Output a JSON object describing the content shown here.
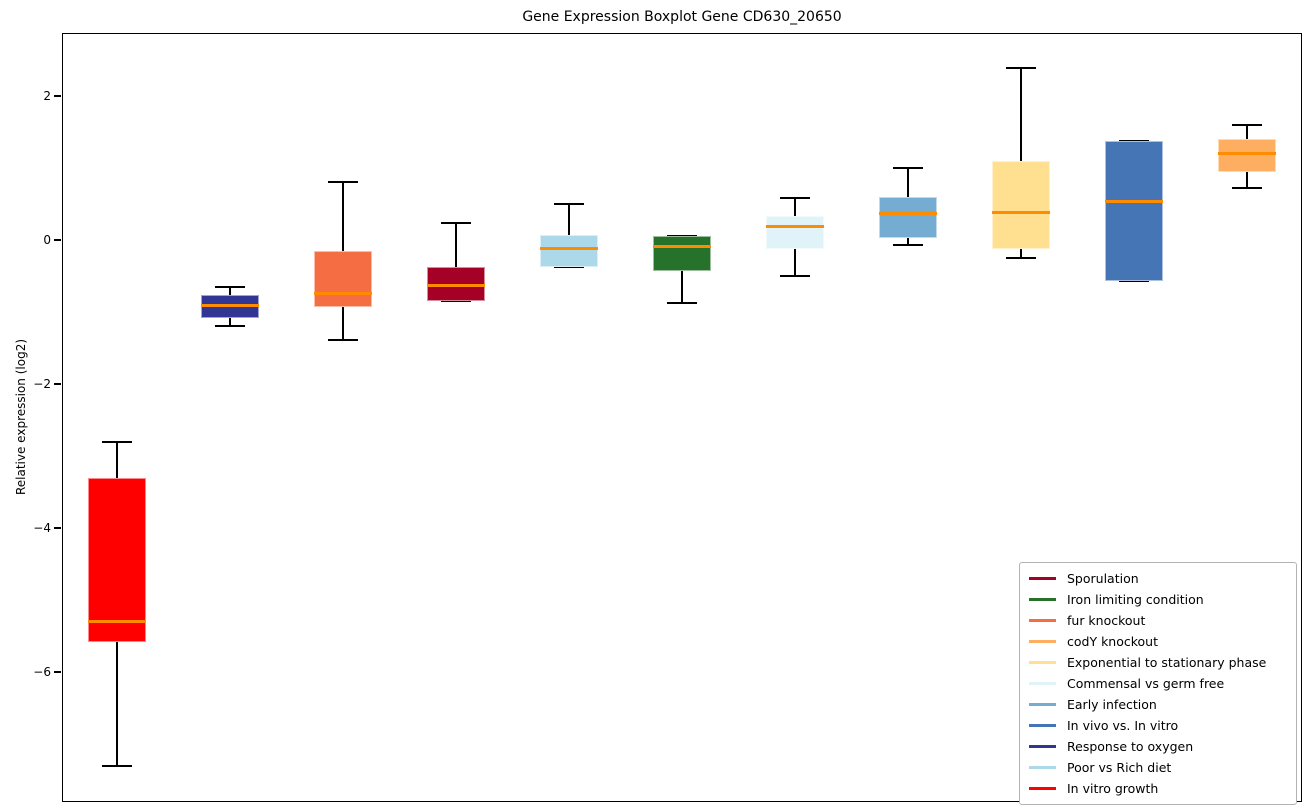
{
  "chart_data": {
    "type": "boxplot",
    "title": "Gene Expression Boxplot Gene CD630_20650",
    "ylabel": "Relative expression (log2)",
    "xlabel": "",
    "ylim": [
      -7.82,
      2.86
    ],
    "yticks": [
      2,
      0,
      -2,
      -4,
      -6
    ],
    "xticklabels": [],
    "grid": false,
    "legend_position": "lower right",
    "median_color": "#ff8c00",
    "whisker_color": "#000000",
    "boxes": [
      {
        "label": "In vitro growth",
        "color": "#ff0000",
        "whislo": -7.31,
        "q1": -5.58,
        "med": -5.3,
        "q3": -3.31,
        "whishi": -2.8
      },
      {
        "label": "Response to oxygen",
        "color": "#313695",
        "whislo": -1.19,
        "q1": -1.08,
        "med": -0.91,
        "q3": -0.76,
        "whishi": -0.66
      },
      {
        "label": "fur knockout",
        "color": "#f46d43",
        "whislo": -1.39,
        "q1": -0.93,
        "med": -0.75,
        "q3": -0.16,
        "whishi": 0.81
      },
      {
        "label": "Sporulation",
        "color": "#a50026",
        "whislo": -0.85,
        "q1": -0.85,
        "med": -0.63,
        "q3": -0.37,
        "whishi": 0.23
      },
      {
        "label": "Poor vs Rich diet",
        "color": "#abd9e9",
        "whislo": -0.38,
        "q1": -0.38,
        "med": -0.12,
        "q3": 0.07,
        "whishi": 0.5
      },
      {
        "label": "Iron limiting condition",
        "color": "#26722b",
        "whislo": -0.88,
        "q1": -0.43,
        "med": -0.09,
        "q3": 0.06,
        "whishi": 0.06
      },
      {
        "label": "Commensal vs germ free",
        "color": "#e0f3f8",
        "whislo": -0.5,
        "q1": -0.13,
        "med": 0.18,
        "q3": 0.33,
        "whishi": 0.58
      },
      {
        "label": "Early infection",
        "color": "#74add1",
        "whislo": -0.07,
        "q1": 0.02,
        "med": 0.37,
        "q3": 0.6,
        "whishi": 1.0
      },
      {
        "label": "Exponential to stationary phase",
        "color": "#fee090",
        "whislo": -0.25,
        "q1": -0.12,
        "med": 0.38,
        "q3": 1.1,
        "whishi": 2.39
      },
      {
        "label": "In vivo vs. In vitro",
        "color": "#4575b4",
        "whislo": -0.57,
        "q1": -0.57,
        "med": 0.53,
        "q3": 1.38,
        "whishi": 1.38
      },
      {
        "label": "codY knockout",
        "color": "#fdae61",
        "whislo": 0.72,
        "q1": 0.94,
        "med": 1.2,
        "q3": 1.4,
        "whishi": 1.59
      }
    ],
    "legend_order": [
      "Sporulation",
      "Iron limiting condition",
      "fur knockout",
      "codY knockout",
      "Exponential to stationary phase",
      "Commensal vs germ free",
      "Early infection",
      "In vivo vs. In vitro",
      "Response to oxygen",
      "Poor vs Rich diet",
      "In vitro growth"
    ]
  }
}
